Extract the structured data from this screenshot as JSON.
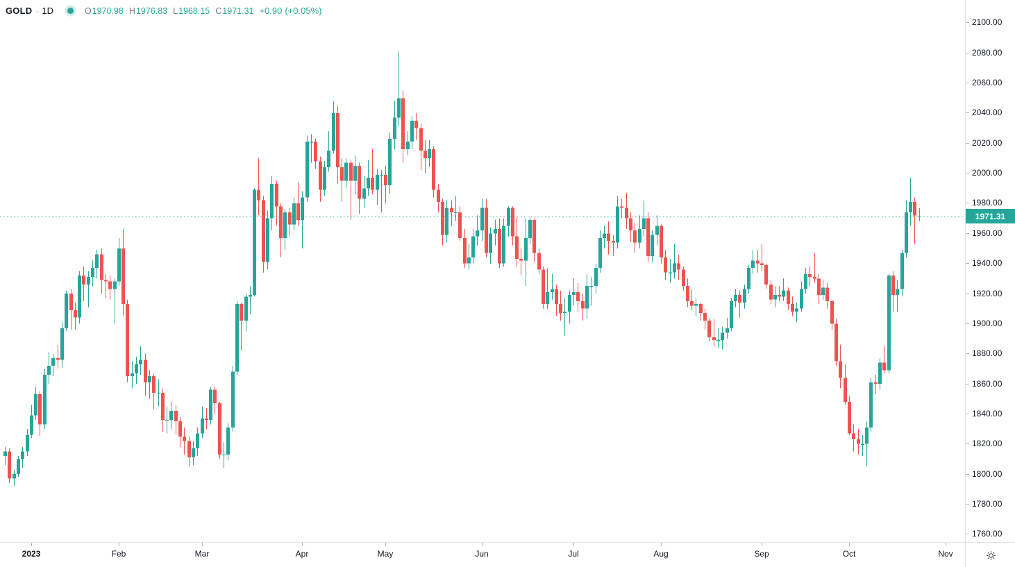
{
  "header": {
    "symbol": "GOLD",
    "separator": "·",
    "timeframe": "1D",
    "ohlc": {
      "o_label": "O",
      "o_value": "1970.98",
      "h_label": "H",
      "h_value": "1976.83",
      "l_label": "L",
      "l_value": "1968.15",
      "c_label": "C",
      "c_value": "1971.31",
      "change": "+0.90",
      "change_pct": "(+0.05%)"
    }
  },
  "icons": {
    "series_marker": "filled-circle",
    "settings": "gear"
  },
  "colors": {
    "up": "#26a69a",
    "down": "#ef5350",
    "text": "#131722",
    "muted": "#787b86",
    "axis_border": "#e0e3eb",
    "tick": "#b2b5be",
    "badge_text": "#ffffff",
    "icon": "#50535e"
  },
  "price_axis": {
    "current_price_label": "1971.31",
    "ticks": [
      {
        "label": "2100.00",
        "value": 2100
      },
      {
        "label": "2080.00",
        "value": 2080
      },
      {
        "label": "2060.00",
        "value": 2060
      },
      {
        "label": "2040.00",
        "value": 2040
      },
      {
        "label": "2020.00",
        "value": 2020
      },
      {
        "label": "2000.00",
        "value": 2000
      },
      {
        "label": "1980.00",
        "value": 1980
      },
      {
        "label": "1960.00",
        "value": 1960
      },
      {
        "label": "1940.00",
        "value": 1940
      },
      {
        "label": "1920.00",
        "value": 1920
      },
      {
        "label": "1900.00",
        "value": 1900
      },
      {
        "label": "1880.00",
        "value": 1880
      },
      {
        "label": "1860.00",
        "value": 1860
      },
      {
        "label": "1840.00",
        "value": 1840
      },
      {
        "label": "1820.00",
        "value": 1820
      },
      {
        "label": "1800.00",
        "value": 1800
      },
      {
        "label": "1780.00",
        "value": 1780
      },
      {
        "label": "1760.00",
        "value": 1760
      }
    ]
  },
  "time_axis": {
    "labels": [
      {
        "label": "2023",
        "index": 6,
        "bold": true
      },
      {
        "label": "Feb",
        "index": 26
      },
      {
        "label": "Mar",
        "index": 45
      },
      {
        "label": "Apr",
        "index": 68
      },
      {
        "label": "May",
        "index": 87
      },
      {
        "label": "Jun",
        "index": 109
      },
      {
        "label": "Jul",
        "index": 130
      },
      {
        "label": "Aug",
        "index": 150
      },
      {
        "label": "Sep",
        "index": 173
      },
      {
        "label": "Oct",
        "index": 193
      },
      {
        "label": "Nov",
        "index": 215
      }
    ]
  },
  "chart_data": {
    "type": "candlestick",
    "symbol": "GOLD",
    "timeframe": "1D",
    "period_shown": "Dec 2022 - Oct 2023",
    "grid": false,
    "legend_position": "top-left",
    "current_price": 1971.31,
    "last_bar": {
      "open": 1970.98,
      "high": 1976.83,
      "low": 1968.15,
      "close": 1971.31,
      "change": 0.9,
      "change_pct": 0.05
    },
    "y_axis": {
      "min": 1760,
      "max": 2100,
      "step": 20
    },
    "visible_range": {
      "min": 1754.8,
      "max": 2115.2
    },
    "candles_format": [
      "open",
      "high",
      "low",
      "close"
    ],
    "candles": [
      [
        1812,
        1818,
        1806,
        1815
      ],
      [
        1815,
        1817,
        1794,
        1797
      ],
      [
        1797,
        1803,
        1792,
        1800
      ],
      [
        1800,
        1812,
        1798,
        1810
      ],
      [
        1810,
        1818,
        1804,
        1815
      ],
      [
        1815,
        1830,
        1812,
        1826
      ],
      [
        1826,
        1846,
        1824,
        1839
      ],
      [
        1839,
        1858,
        1836,
        1853
      ],
      [
        1853,
        1855,
        1825,
        1833
      ],
      [
        1833,
        1870,
        1830,
        1866
      ],
      [
        1866,
        1881,
        1860,
        1872
      ],
      [
        1872,
        1880,
        1865,
        1877
      ],
      [
        1877,
        1886,
        1870,
        1876
      ],
      [
        1876,
        1901,
        1871,
        1897
      ],
      [
        1897,
        1922,
        1895,
        1920
      ],
      [
        1920,
        1923,
        1896,
        1909
      ],
      [
        1909,
        1914,
        1896,
        1904
      ],
      [
        1904,
        1935,
        1900,
        1932
      ],
      [
        1932,
        1938,
        1915,
        1926
      ],
      [
        1926,
        1935,
        1911,
        1931
      ],
      [
        1931,
        1942,
        1925,
        1937
      ],
      [
        1937,
        1949,
        1930,
        1946
      ],
      [
        1946,
        1950,
        1920,
        1929
      ],
      [
        1929,
        1933,
        1917,
        1928
      ],
      [
        1928,
        1932,
        1916,
        1923
      ],
      [
        1923,
        1930,
        1900,
        1928
      ],
      [
        1928,
        1957,
        1925,
        1950
      ],
      [
        1950,
        1963,
        1905,
        1913
      ],
      [
        1913,
        1916,
        1861,
        1865
      ],
      [
        1865,
        1875,
        1857,
        1867
      ],
      [
        1867,
        1878,
        1860,
        1873
      ],
      [
        1873,
        1885,
        1866,
        1876
      ],
      [
        1876,
        1880,
        1852,
        1861
      ],
      [
        1861,
        1869,
        1850,
        1865
      ],
      [
        1865,
        1867,
        1843,
        1854
      ],
      [
        1854,
        1863,
        1845,
        1854
      ],
      [
        1854,
        1857,
        1828,
        1836
      ],
      [
        1836,
        1845,
        1827,
        1836
      ],
      [
        1836,
        1848,
        1830,
        1842
      ],
      [
        1842,
        1846,
        1826,
        1835
      ],
      [
        1835,
        1838,
        1818,
        1825
      ],
      [
        1825,
        1831,
        1813,
        1822
      ],
      [
        1822,
        1825,
        1805,
        1811
      ],
      [
        1811,
        1822,
        1806,
        1817
      ],
      [
        1817,
        1831,
        1812,
        1827
      ],
      [
        1827,
        1845,
        1824,
        1837
      ],
      [
        1837,
        1844,
        1830,
        1836
      ],
      [
        1836,
        1858,
        1833,
        1856
      ],
      [
        1856,
        1858,
        1840,
        1847
      ],
      [
        1847,
        1848,
        1810,
        1813
      ],
      [
        1813,
        1821,
        1804,
        1813
      ],
      [
        1813,
        1834,
        1809,
        1831
      ],
      [
        1831,
        1872,
        1828,
        1868
      ],
      [
        1868,
        1915,
        1866,
        1913
      ],
      [
        1913,
        1914,
        1882,
        1902
      ],
      [
        1902,
        1920,
        1895,
        1918
      ],
      [
        1918,
        1925,
        1906,
        1919
      ],
      [
        1919,
        1990,
        1918,
        1989
      ],
      [
        1989,
        2010,
        1972,
        1982
      ],
      [
        1982,
        1985,
        1934,
        1941
      ],
      [
        1941,
        1975,
        1936,
        1970
      ],
      [
        1970,
        1998,
        1962,
        1993
      ],
      [
        1993,
        1995,
        1965,
        1978
      ],
      [
        1978,
        1980,
        1944,
        1957
      ],
      [
        1957,
        1976,
        1949,
        1974
      ],
      [
        1974,
        1977,
        1958,
        1966
      ],
      [
        1966,
        1984,
        1962,
        1980
      ],
      [
        1980,
        1994,
        1965,
        1969
      ],
      [
        1969,
        1988,
        1950,
        1984
      ],
      [
        1984,
        2025,
        1981,
        2021
      ],
      [
        2021,
        2026,
        2007,
        2021
      ],
      [
        2021,
        2023,
        2003,
        2008
      ],
      [
        2008,
        2011,
        1981,
        1989
      ],
      [
        1989,
        2008,
        1985,
        2004
      ],
      [
        2004,
        2028,
        2001,
        2015
      ],
      [
        2015,
        2048,
        2013,
        2040
      ],
      [
        2040,
        2045,
        1993,
        2004
      ],
      [
        2004,
        2010,
        1981,
        1995
      ],
      [
        1995,
        2010,
        1990,
        2007
      ],
      [
        2007,
        2009,
        1969,
        1995
      ],
      [
        1995,
        2012,
        1986,
        2005
      ],
      [
        2005,
        2007,
        1973,
        1983
      ],
      [
        1983,
        1998,
        1977,
        1990
      ],
      [
        1990,
        2009,
        1985,
        1997
      ],
      [
        1997,
        2016,
        1986,
        1989
      ],
      [
        1989,
        2003,
        1979,
        1999
      ],
      [
        1999,
        2002,
        1974,
        1999
      ],
      [
        1999,
        2005,
        1980,
        1992
      ],
      [
        1992,
        2027,
        1986,
        2023
      ],
      [
        2023,
        2048,
        2016,
        2037
      ],
      [
        2037,
        2081,
        2031,
        2050
      ],
      [
        2050,
        2055,
        2007,
        2016
      ],
      [
        2016,
        2028,
        2012,
        2021
      ],
      [
        2021,
        2038,
        2016,
        2035
      ],
      [
        2035,
        2040,
        2022,
        2030
      ],
      [
        2030,
        2033,
        2002,
        2015
      ],
      [
        2015,
        2022,
        2000,
        2010
      ],
      [
        2010,
        2022,
        2004,
        2016
      ],
      [
        2016,
        2018,
        1984,
        1989
      ],
      [
        1989,
        1993,
        1974,
        1981
      ],
      [
        1981,
        1983,
        1952,
        1959
      ],
      [
        1959,
        1982,
        1954,
        1977
      ],
      [
        1977,
        1982,
        1965,
        1974
      ],
      [
        1974,
        1985,
        1968,
        1974
      ],
      [
        1974,
        1978,
        1955,
        1957
      ],
      [
        1957,
        1963,
        1937,
        1940
      ],
      [
        1940,
        1953,
        1936,
        1944
      ],
      [
        1944,
        1963,
        1940,
        1958
      ],
      [
        1958,
        1972,
        1952,
        1962
      ],
      [
        1962,
        1983,
        1955,
        1977
      ],
      [
        1977,
        1983,
        1944,
        1947
      ],
      [
        1947,
        1964,
        1940,
        1960
      ],
      [
        1960,
        1969,
        1952,
        1963
      ],
      [
        1963,
        1970,
        1937,
        1940
      ],
      [
        1940,
        1970,
        1938,
        1965
      ],
      [
        1965,
        1978,
        1958,
        1977
      ],
      [
        1977,
        1978,
        1952,
        1958
      ],
      [
        1958,
        1971,
        1938,
        1943
      ],
      [
        1943,
        1950,
        1932,
        1942
      ],
      [
        1942,
        1970,
        1925,
        1957
      ],
      [
        1957,
        1971,
        1953,
        1969
      ],
      [
        1969,
        1970,
        1941,
        1947
      ],
      [
        1947,
        1950,
        1933,
        1936
      ],
      [
        1936,
        1938,
        1910,
        1913
      ],
      [
        1913,
        1937,
        1910,
        1921
      ],
      [
        1921,
        1933,
        1916,
        1923
      ],
      [
        1923,
        1926,
        1905,
        1913
      ],
      [
        1913,
        1922,
        1902,
        1907
      ],
      [
        1907,
        1917,
        1892,
        1908
      ],
      [
        1908,
        1922,
        1900,
        1919
      ],
      [
        1919,
        1930,
        1912,
        1921
      ],
      [
        1921,
        1927,
        1908,
        1915
      ],
      [
        1915,
        1920,
        1902,
        1910
      ],
      [
        1910,
        1933,
        1903,
        1925
      ],
      [
        1925,
        1931,
        1912,
        1925
      ],
      [
        1925,
        1940,
        1920,
        1937
      ],
      [
        1937,
        1962,
        1934,
        1957
      ],
      [
        1957,
        1965,
        1950,
        1960
      ],
      [
        1960,
        1968,
        1946,
        1955
      ],
      [
        1955,
        1959,
        1945,
        1954
      ],
      [
        1954,
        1985,
        1950,
        1978
      ],
      [
        1978,
        1983,
        1970,
        1977
      ],
      [
        1977,
        1987,
        1963,
        1970
      ],
      [
        1970,
        1974,
        1954,
        1962
      ],
      [
        1962,
        1967,
        1947,
        1954
      ],
      [
        1954,
        1972,
        1950,
        1963
      ],
      [
        1963,
        1982,
        1958,
        1970
      ],
      [
        1970,
        1974,
        1941,
        1945
      ],
      [
        1945,
        1962,
        1941,
        1959
      ],
      [
        1959,
        1972,
        1952,
        1965
      ],
      [
        1965,
        1966,
        1940,
        1944
      ],
      [
        1944,
        1949,
        1929,
        1934
      ],
      [
        1934,
        1943,
        1927,
        1934
      ],
      [
        1934,
        1953,
        1930,
        1940
      ],
      [
        1940,
        1946,
        1929,
        1936
      ],
      [
        1936,
        1938,
        1922,
        1925
      ],
      [
        1925,
        1930,
        1911,
        1915
      ],
      [
        1915,
        1923,
        1909,
        1912
      ],
      [
        1912,
        1917,
        1905,
        1913
      ],
      [
        1913,
        1914,
        1902,
        1907
      ],
      [
        1907,
        1910,
        1896,
        1902
      ],
      [
        1902,
        1904,
        1888,
        1891
      ],
      [
        1891,
        1903,
        1885,
        1889
      ],
      [
        1889,
        1897,
        1884,
        1889
      ],
      [
        1889,
        1898,
        1883,
        1894
      ],
      [
        1894,
        1904,
        1890,
        1897
      ],
      [
        1897,
        1917,
        1895,
        1915
      ],
      [
        1915,
        1923,
        1911,
        1919
      ],
      [
        1919,
        1922,
        1904,
        1914
      ],
      [
        1914,
        1926,
        1910,
        1923
      ],
      [
        1923,
        1939,
        1920,
        1937
      ],
      [
        1937,
        1949,
        1933,
        1942
      ],
      [
        1942,
        1949,
        1934,
        1940
      ],
      [
        1940,
        1953,
        1935,
        1939
      ],
      [
        1939,
        1940,
        1923,
        1926
      ],
      [
        1926,
        1929,
        1913,
        1916
      ],
      [
        1916,
        1925,
        1911,
        1919
      ],
      [
        1919,
        1925,
        1915,
        1918
      ],
      [
        1918,
        1930,
        1915,
        1922
      ],
      [
        1922,
        1924,
        1909,
        1913
      ],
      [
        1913,
        1918,
        1905,
        1908
      ],
      [
        1908,
        1914,
        1901,
        1910
      ],
      [
        1910,
        1928,
        1908,
        1923
      ],
      [
        1923,
        1937,
        1920,
        1933
      ],
      [
        1933,
        1938,
        1925,
        1931
      ],
      [
        1931,
        1947,
        1927,
        1930
      ],
      [
        1930,
        1933,
        1913,
        1919
      ],
      [
        1919,
        1929,
        1916,
        1924
      ],
      [
        1924,
        1927,
        1910,
        1915
      ],
      [
        1915,
        1916,
        1896,
        1900
      ],
      [
        1900,
        1903,
        1872,
        1875
      ],
      [
        1875,
        1886,
        1857,
        1864
      ],
      [
        1864,
        1873,
        1846,
        1848
      ],
      [
        1848,
        1852,
        1826,
        1827
      ],
      [
        1827,
        1833,
        1815,
        1823
      ],
      [
        1823,
        1830,
        1813,
        1820
      ],
      [
        1820,
        1826,
        1812,
        1820
      ],
      [
        1820,
        1835,
        1805,
        1831
      ],
      [
        1831,
        1864,
        1828,
        1861
      ],
      [
        1861,
        1866,
        1853,
        1860
      ],
      [
        1860,
        1877,
        1856,
        1874
      ],
      [
        1874,
        1885,
        1867,
        1869
      ],
      [
        1869,
        1933,
        1867,
        1932
      ],
      [
        1932,
        1935,
        1908,
        1919
      ],
      [
        1919,
        1929,
        1908,
        1923
      ],
      [
        1923,
        1949,
        1918,
        1947
      ],
      [
        1947,
        1982,
        1944,
        1974
      ],
      [
        1974,
        1997,
        1965,
        1981
      ],
      [
        1981,
        1984,
        1953,
        1972
      ],
      [
        1970.98,
        1976.83,
        1968.15,
        1971.31
      ]
    ]
  }
}
